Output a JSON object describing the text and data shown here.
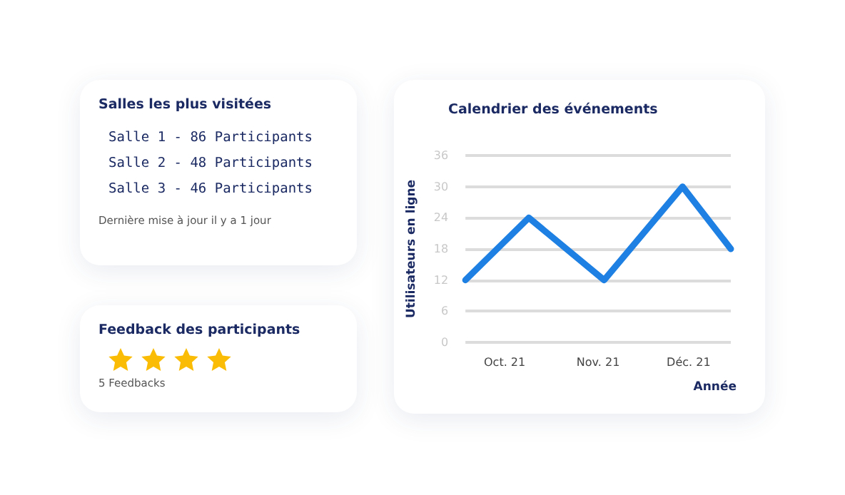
{
  "chart_data": [
    {
      "type": "other",
      "title": "Salles les plus visitées",
      "annotations": [
        "Salle 1 - 86 Participants",
        "Salle 2 - 48 Participants",
        "Salle 3 - 46 Participants",
        "Dernière mise à jour il y a 1 jour"
      ]
    },
    {
      "type": "other",
      "title": "Feedback des participants",
      "annotations": [
        "5 Feedbacks"
      ]
    },
    {
      "type": "line",
      "title": "Calendrier des événements",
      "xlabel": "Année",
      "ylabel": "Utilisateurs en ligne",
      "x": [
        "2021-09-18",
        "2021-10-09",
        "2021-11-03",
        "2021-11-29",
        "2021-12-15"
      ],
      "series": [
        {
          "color": "#1e80e2",
          "values": [
            12,
            24,
            12,
            30,
            18
          ]
        }
      ],
      "xlim": [
        "2021-09-18",
        "2021-12-15"
      ],
      "xticks": [
        {
          "value": "2021-10-01",
          "label": "Oct. 21"
        },
        {
          "value": "2021-11-01",
          "label": "Nov. 21"
        },
        {
          "value": "2021-12-01",
          "label": "Déc. 21"
        }
      ],
      "ylim": [
        0,
        36
      ],
      "yticks": [
        0,
        6,
        12,
        18,
        24,
        30,
        36
      ],
      "grid": "y",
      "marker": "none"
    }
  ]
}
